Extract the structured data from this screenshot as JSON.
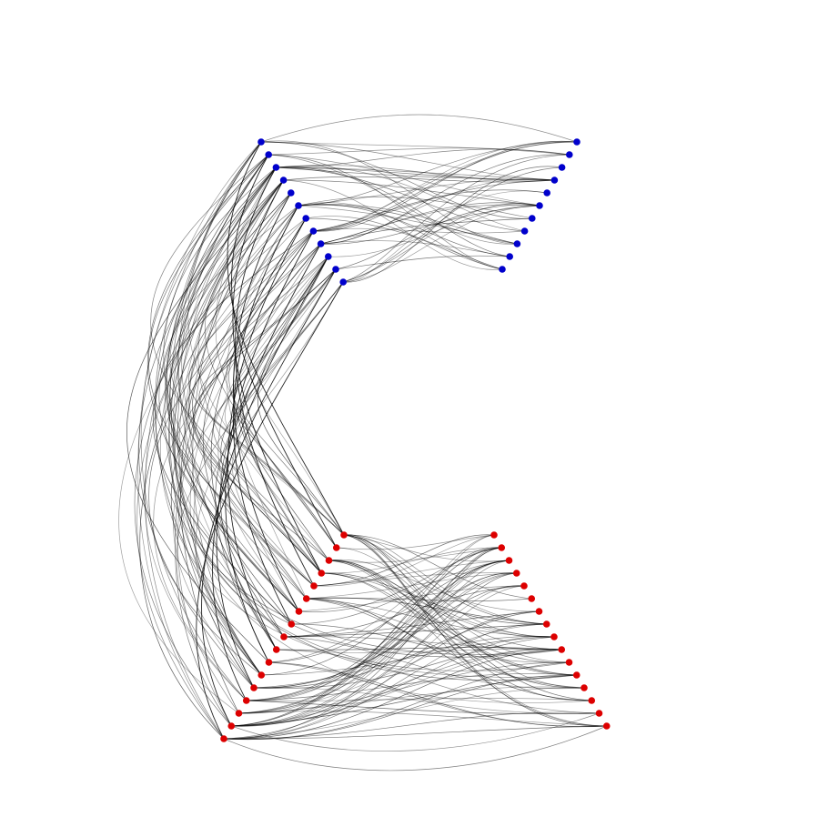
{
  "diagram": {
    "type": "bipartite-bundled-graph",
    "background": "#ffffff",
    "edge_color": "#000000",
    "groups": [
      {
        "id": "blue",
        "color": "#0000cc",
        "node_count": 23,
        "layers": [
          {
            "id": "blue-left",
            "nodes": 12
          },
          {
            "id": "blue-right",
            "nodes": 11
          }
        ]
      },
      {
        "id": "red",
        "color": "#dd0000",
        "node_count": 33,
        "layers": [
          {
            "id": "red-left",
            "nodes": 17
          },
          {
            "id": "red-right",
            "nodes": 16
          }
        ]
      }
    ],
    "edge_bundles": [
      {
        "id": "blue-internal",
        "from": "blue-left",
        "to": "blue-right",
        "edges": 52
      },
      {
        "id": "red-internal",
        "from": "red-left",
        "to": "red-right",
        "edges": 96
      },
      {
        "id": "blue-left-to-red-left",
        "from": "blue-left",
        "to": "red-left",
        "edges": 84
      },
      {
        "id": "blue-left-to-red-right",
        "from": "blue-left",
        "to": "red-right",
        "edges": 6
      }
    ]
  }
}
